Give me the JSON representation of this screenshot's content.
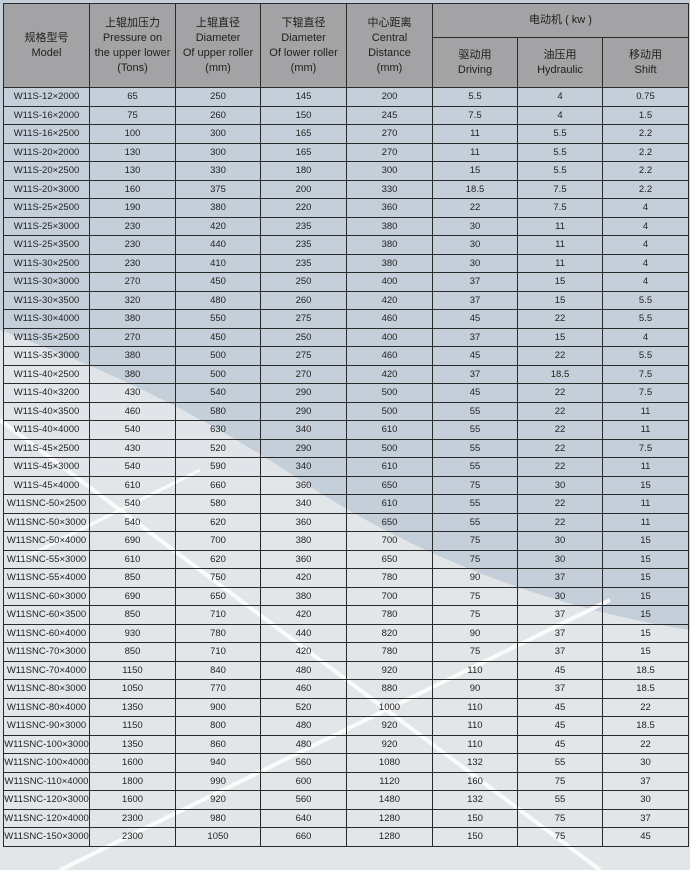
{
  "header": {
    "model": [
      "规格型号",
      "Model"
    ],
    "pressure": [
      "上辊加压力",
      "Pressure on",
      "the upper lower",
      "(Tons)"
    ],
    "upper": [
      "上辊直径",
      "Diameter",
      "Of upper roller",
      "(mm)"
    ],
    "lower": [
      "下辊直径",
      "Diameter",
      "Of lower roller",
      "(mm)"
    ],
    "center": [
      "中心距离",
      "Central",
      "Distance",
      "(mm)"
    ],
    "motor": "电动机 ( kw )",
    "driving": [
      "驱动用",
      "Driving"
    ],
    "hydraulic": [
      "油压用",
      "Hydraulic"
    ],
    "shift": [
      "移动用",
      "Shift"
    ]
  },
  "colors": {
    "background": "#c5cfd9",
    "header": "#a5a5a7",
    "highlight": "#eef0f2"
  },
  "rows": [
    [
      "W11S-12×2000",
      "65",
      "250",
      "145",
      "200",
      "5.5",
      "4",
      "0.75"
    ],
    [
      "W11S-16×2000",
      "75",
      "260",
      "150",
      "245",
      "7.5",
      "4",
      "1.5"
    ],
    [
      "W11S-16×2500",
      "100",
      "300",
      "165",
      "270",
      "11",
      "5.5",
      "2.2"
    ],
    [
      "W11S-20×2000",
      "130",
      "300",
      "165",
      "270",
      "11",
      "5.5",
      "2.2"
    ],
    [
      "W11S-20×2500",
      "130",
      "330",
      "180",
      "300",
      "15",
      "5.5",
      "2.2"
    ],
    [
      "W11S-20×3000",
      "160",
      "375",
      "200",
      "330",
      "18.5",
      "7.5",
      "2.2"
    ],
    [
      "W11S-25×2500",
      "190",
      "380",
      "220",
      "360",
      "22",
      "7.5",
      "4"
    ],
    [
      "W11S-25×3000",
      "230",
      "420",
      "235",
      "380",
      "30",
      "11",
      "4"
    ],
    [
      "W11S-25×3500",
      "230",
      "440",
      "235",
      "380",
      "30",
      "11",
      "4"
    ],
    [
      "W11S-30×2500",
      "230",
      "410",
      "235",
      "380",
      "30",
      "11",
      "4"
    ],
    [
      "W11S-30×3000",
      "270",
      "450",
      "250",
      "400",
      "37",
      "15",
      "4"
    ],
    [
      "W11S-30×3500",
      "320",
      "480",
      "260",
      "420",
      "37",
      "15",
      "5.5"
    ],
    [
      "W11S-30×4000",
      "380",
      "550",
      "275",
      "460",
      "45",
      "22",
      "5.5"
    ],
    [
      "W11S-35×2500",
      "270",
      "450",
      "250",
      "400",
      "37",
      "15",
      "4"
    ],
    [
      "W11S-35×3000",
      "380",
      "500",
      "275",
      "460",
      "45",
      "22",
      "5.5"
    ],
    [
      "W11S-40×2500",
      "380",
      "500",
      "270",
      "420",
      "37",
      "18.5",
      "7.5"
    ],
    [
      "W11S-40×3200",
      "430",
      "540",
      "290",
      "500",
      "45",
      "22",
      "7.5"
    ],
    [
      "W11S-40×3500",
      "460",
      "580",
      "290",
      "500",
      "55",
      "22",
      "11"
    ],
    [
      "W11S-40×4000",
      "540",
      "630",
      "340",
      "610",
      "55",
      "22",
      "11"
    ],
    [
      "W11S-45×2500",
      "430",
      "520",
      "290",
      "500",
      "55",
      "22",
      "7.5"
    ],
    [
      "W11S-45×3000",
      "540",
      "590",
      "340",
      "610",
      "55",
      "22",
      "11"
    ],
    [
      "W11S-45×4000",
      "610",
      "660",
      "360",
      "650",
      "75",
      "30",
      "15"
    ],
    [
      "W11SNC-50×2500",
      "540",
      "580",
      "340",
      "610",
      "55",
      "22",
      "11"
    ],
    [
      "W11SNC-50×3000",
      "540",
      "620",
      "360",
      "650",
      "55",
      "22",
      "11"
    ],
    [
      "W11SNC-50×4000",
      "690",
      "700",
      "380",
      "700",
      "75",
      "30",
      "15"
    ],
    [
      "W11SNC-55×3000",
      "610",
      "620",
      "360",
      "650",
      "75",
      "30",
      "15"
    ],
    [
      "W11SNC-55×4000",
      "850",
      "750",
      "420",
      "780",
      "90",
      "37",
      "15"
    ],
    [
      "W11SNC-60×3000",
      "690",
      "650",
      "380",
      "700",
      "75",
      "30",
      "15"
    ],
    [
      "W11SNC-60×3500",
      "850",
      "710",
      "420",
      "780",
      "75",
      "37",
      "15"
    ],
    [
      "W11SNC-60×4000",
      "930",
      "780",
      "440",
      "820",
      "90",
      "37",
      "15"
    ],
    [
      "W11SNC-70×3000",
      "850",
      "710",
      "420",
      "780",
      "75",
      "37",
      "15"
    ],
    [
      "W11SNC-70×4000",
      "1150",
      "840",
      "480",
      "920",
      "110",
      "45",
      "18.5"
    ],
    [
      "W11SNC-80×3000",
      "1050",
      "770",
      "460",
      "880",
      "90",
      "37",
      "18.5"
    ],
    [
      "W11SNC-80×4000",
      "1350",
      "900",
      "520",
      "1000",
      "110",
      "45",
      "22"
    ],
    [
      "W11SNC-90×3000",
      "1150",
      "800",
      "480",
      "920",
      "110",
      "45",
      "18.5"
    ],
    [
      "W11SNC-100×3000",
      "1350",
      "860",
      "480",
      "920",
      "110",
      "45",
      "22"
    ],
    [
      "W11SNC-100×4000",
      "1600",
      "940",
      "560",
      "1080",
      "132",
      "55",
      "30"
    ],
    [
      "W11SNC-110×4000",
      "1800",
      "990",
      "600",
      "1120",
      "160",
      "75",
      "37"
    ],
    [
      "W11SNC-120×3000",
      "1600",
      "920",
      "560",
      "1480",
      "132",
      "55",
      "30"
    ],
    [
      "W11SNC-120×4000",
      "2300",
      "980",
      "640",
      "1280",
      "150",
      "75",
      "37"
    ],
    [
      "W11SNC-150×3000",
      "2300",
      "1050",
      "660",
      "1280",
      "150",
      "75",
      "45"
    ]
  ]
}
